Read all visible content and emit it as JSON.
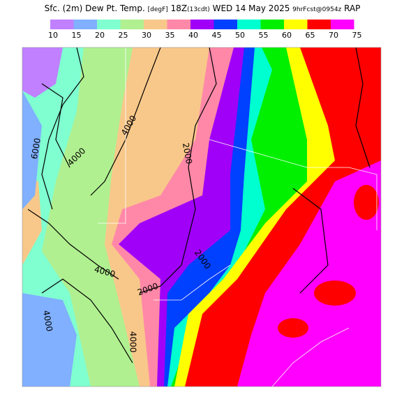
{
  "header": {
    "title": [
      "Sfc. (2m) Dew Pt. Temp.",
      "[degF]",
      "18Z",
      "(13cdt)",
      "WED 14 May 2025",
      "9hrFcst@0954z",
      "RAP"
    ]
  },
  "colorbar": {
    "labels": [
      10,
      15,
      20,
      25,
      30,
      35,
      40,
      45,
      50,
      55,
      60,
      65,
      70,
      75
    ],
    "colors": [
      "#c080ff",
      "#80b0ff",
      "#80ffd0",
      "#b0f090",
      "#f8c88a",
      "#ff88a8",
      "#a000f8",
      "#0040ff",
      "#00ffd0",
      "#00f000",
      "#ffff00",
      "#ff0000",
      "#ff00ff"
    ]
  },
  "contour_labels": [
    "6000",
    "4000",
    "4000",
    "2000",
    "2000",
    "2000",
    "4000",
    "4000",
    "4000"
  ]
}
